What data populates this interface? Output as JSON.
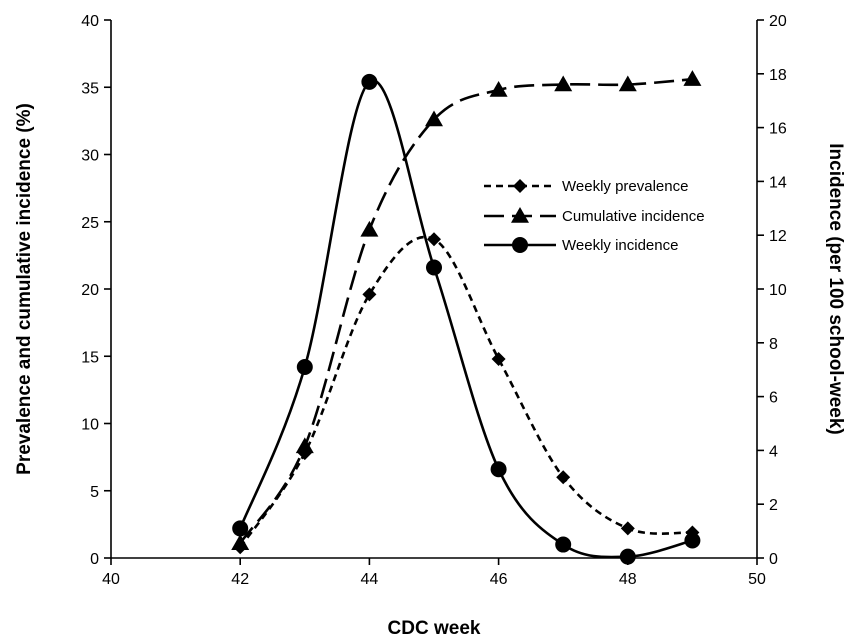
{
  "chart_data": {
    "type": "line",
    "xlabel": "CDC week",
    "ylabel_left": "Prevalence and cumulative incidence (%)",
    "ylabel_right": "Incidence (per 100 school-week)",
    "xlim": [
      40,
      50
    ],
    "xticks": [
      40,
      42,
      44,
      46,
      48,
      50
    ],
    "ylim_left": [
      0,
      40
    ],
    "yticks_left": [
      0,
      5,
      10,
      15,
      20,
      25,
      30,
      35,
      40
    ],
    "ylim_right": [
      0,
      20
    ],
    "yticks_right": [
      0,
      2,
      4,
      6,
      8,
      10,
      12,
      14,
      16,
      18,
      20
    ],
    "grid": false,
    "legend_position": "center-right",
    "series": [
      {
        "name": "Weekly prevalence",
        "axis": "left",
        "marker": "diamond",
        "line_style": "dashed-short",
        "x": [
          42,
          43,
          44,
          45,
          46,
          47,
          48,
          49
        ],
        "values": [
          0.8,
          7.8,
          19.6,
          23.7,
          14.8,
          6.0,
          2.2,
          1.9
        ]
      },
      {
        "name": "Cumulative incidence",
        "axis": "left",
        "marker": "triangle",
        "line_style": "dashed-long",
        "x": [
          42,
          43,
          44,
          45,
          46,
          47,
          48,
          49
        ],
        "values": [
          1.1,
          8.3,
          24.4,
          32.6,
          34.8,
          35.2,
          35.2,
          35.6
        ]
      },
      {
        "name": "Weekly incidence",
        "axis": "right",
        "marker": "circle",
        "line_style": "solid",
        "x": [
          42,
          43,
          44,
          45,
          46,
          47,
          48,
          49
        ],
        "values": [
          1.1,
          7.1,
          17.7,
          10.8,
          3.3,
          0.5,
          0.05,
          0.65
        ]
      }
    ]
  }
}
